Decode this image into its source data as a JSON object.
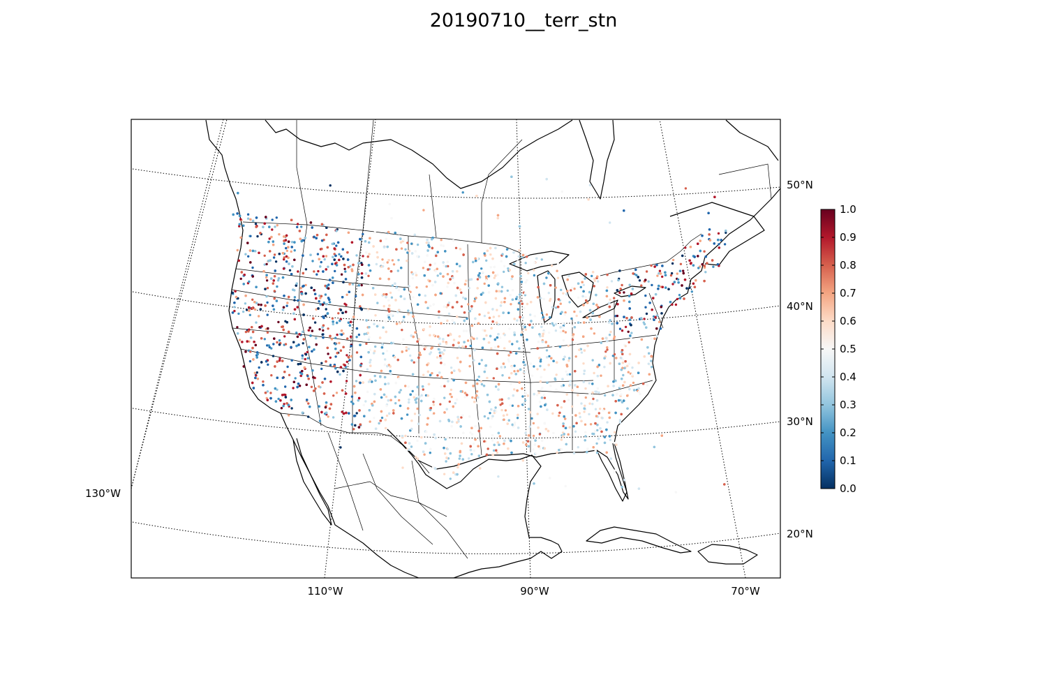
{
  "title": "20190710__terr_stn",
  "map": {
    "projection": "lambert-conformal-conic",
    "latitude_labels": [
      {
        "id": "lat-50",
        "text": "50°N",
        "lat": 50
      },
      {
        "id": "lat-40",
        "text": "40°N",
        "lat": 40
      },
      {
        "id": "lat-30",
        "text": "30°N",
        "lat": 30
      },
      {
        "id": "lat-20",
        "text": "20°N",
        "lat": 20
      }
    ],
    "longitude_labels": [
      {
        "id": "lon-130",
        "text": "130°W",
        "lon": -130
      },
      {
        "id": "lon-110",
        "text": "110°W",
        "lon": -110
      },
      {
        "id": "lon-90",
        "text": "90°W",
        "lon": -90
      },
      {
        "id": "lon-70",
        "text": "70°W",
        "lon": -70
      }
    ],
    "graticule": "dotted",
    "station_marker": "dot"
  },
  "colorbar": {
    "colormap": "RdBu_r",
    "min": 0.0,
    "max": 1.0,
    "ticks": [
      "0.0",
      "0.1",
      "0.2",
      "0.3",
      "0.4",
      "0.5",
      "0.6",
      "0.7",
      "0.8",
      "0.9",
      "1.0"
    ],
    "stops": [
      "#053061",
      "#2166ac",
      "#4393c3",
      "#92c5de",
      "#d1e5f0",
      "#f7f7f7",
      "#fddbc7",
      "#f4a582",
      "#d6604d",
      "#b2182b",
      "#67001f"
    ]
  }
}
